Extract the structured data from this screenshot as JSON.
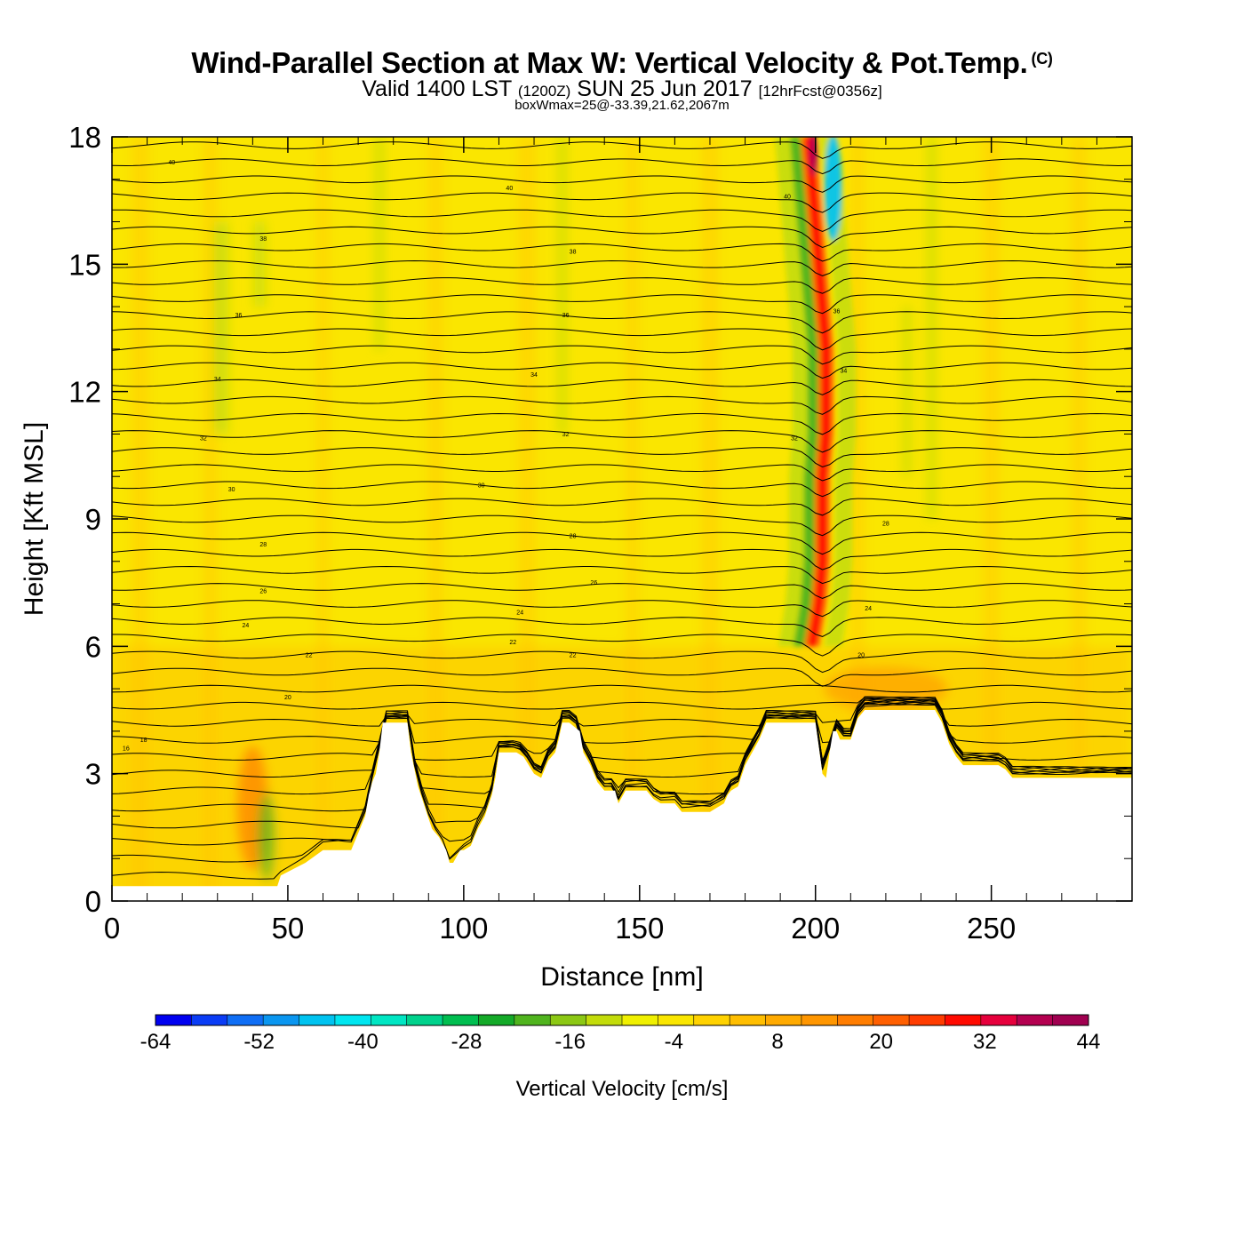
{
  "title": {
    "main": "Wind-Parallel Section at Max W: Vertical Velocity & Pot.Temp.",
    "copyright": "(C)",
    "valid_prefix": "Valid 1400 LST",
    "valid_utc": "(1200Z)",
    "valid_date": "SUN 25 Jun 2017",
    "forecast": "[12hrFcst@0356z]",
    "box_note": "boxWmax=25@-33.39,21.62,2067m"
  },
  "chart_data": {
    "type": "heatmap",
    "description": "Filled contours of vertical velocity with black potential temperature isolines over terrain",
    "xlabel": "Distance [nm]",
    "ylabel": "Height [Kft MSL]",
    "xlim": [
      0,
      290
    ],
    "ylim": [
      0,
      18
    ],
    "x_ticks": [
      0,
      50,
      100,
      150,
      200,
      250
    ],
    "y_ticks": [
      0,
      3,
      6,
      9,
      12,
      15,
      18
    ],
    "colorbar": {
      "label": "Vertical Velocity [cm/s]",
      "min": -64,
      "max": 44,
      "step": 4,
      "tick_labels": [
        "-64",
        "-52",
        "-40",
        "-28",
        "-16",
        "-4",
        "8",
        "20",
        "32",
        "44"
      ],
      "colors": [
        "#0000f0",
        "#0a3cf5",
        "#0f6ef5",
        "#0a96f0",
        "#00c3f0",
        "#00e6f0",
        "#00e6c3",
        "#00d28c",
        "#00be50",
        "#14aa28",
        "#50b41e",
        "#8cc814",
        "#c3dc0a",
        "#f0f000",
        "#fae600",
        "#ffd200",
        "#ffbe00",
        "#ffaa00",
        "#ff9600",
        "#ff7d00",
        "#ff5f00",
        "#ff3c00",
        "#ff0a00",
        "#e6003c",
        "#b40050",
        "#a00050"
      ]
    },
    "terrain_kft": [
      [
        0,
        0.35
      ],
      [
        10,
        0.35
      ],
      [
        20,
        0.35
      ],
      [
        30,
        0.35
      ],
      [
        40,
        0.35
      ],
      [
        47,
        0.35
      ],
      [
        48,
        0.6
      ],
      [
        55,
        0.9
      ],
      [
        60,
        1.2
      ],
      [
        68,
        1.2
      ],
      [
        70,
        1.6
      ],
      [
        72,
        2
      ],
      [
        73,
        2.5
      ],
      [
        74,
        2.8
      ],
      [
        75,
        3
      ],
      [
        76,
        3.5
      ],
      [
        77,
        4.2
      ],
      [
        80,
        4.2
      ],
      [
        84,
        4.2
      ],
      [
        85,
        3.5
      ],
      [
        87,
        2.7
      ],
      [
        89,
        2.2
      ],
      [
        91,
        1.7
      ],
      [
        93,
        1.5
      ],
      [
        95,
        1.2
      ],
      [
        96,
        0.9
      ],
      [
        97,
        0.9
      ],
      [
        99,
        1.2
      ],
      [
        100,
        1.2
      ],
      [
        102,
        1.3
      ],
      [
        104,
        1.7
      ],
      [
        106,
        2.0
      ],
      [
        108,
        2.5
      ],
      [
        109,
        2.9
      ],
      [
        110,
        3.5
      ],
      [
        112,
        3.5
      ],
      [
        115,
        3.5
      ],
      [
        117,
        3.4
      ],
      [
        120,
        3.0
      ],
      [
        122,
        2.9
      ],
      [
        124,
        3.3
      ],
      [
        126,
        3.5
      ],
      [
        127,
        3.8
      ],
      [
        128,
        4.2
      ],
      [
        130,
        4.2
      ],
      [
        133,
        4.0
      ],
      [
        134,
        3.5
      ],
      [
        136,
        3.2
      ],
      [
        138,
        2.8
      ],
      [
        140,
        2.6
      ],
      [
        143,
        2.6
      ],
      [
        144,
        2.3
      ],
      [
        146,
        2.6
      ],
      [
        152,
        2.6
      ],
      [
        154,
        2.4
      ],
      [
        156,
        2.3
      ],
      [
        160,
        2.3
      ],
      [
        162,
        2.1
      ],
      [
        165,
        2.1
      ],
      [
        170,
        2.1
      ],
      [
        172,
        2.2
      ],
      [
        174,
        2.3
      ],
      [
        175,
        2.5
      ],
      [
        176,
        2.6
      ],
      [
        178,
        2.7
      ],
      [
        180,
        3.2
      ],
      [
        182,
        3.5
      ],
      [
        184,
        3.8
      ],
      [
        186,
        4.2
      ],
      [
        192,
        4.2
      ],
      [
        196,
        4.2
      ],
      [
        198,
        4.2
      ],
      [
        200,
        4.2
      ],
      [
        201,
        3.6
      ],
      [
        202,
        3.0
      ],
      [
        203,
        2.9
      ],
      [
        204,
        3.5
      ],
      [
        205,
        4.0
      ],
      [
        206,
        4.0
      ],
      [
        207,
        3.8
      ],
      [
        210,
        3.8
      ],
      [
        212,
        4.3
      ],
      [
        214,
        4.5
      ],
      [
        220,
        4.5
      ],
      [
        234,
        4.5
      ],
      [
        236,
        4.2
      ],
      [
        238,
        3.7
      ],
      [
        240,
        3.4
      ],
      [
        242,
        3.2
      ],
      [
        247,
        3.2
      ],
      [
        252,
        3.2
      ],
      [
        254,
        3.1
      ],
      [
        256,
        2.9
      ],
      [
        260,
        2.9
      ],
      [
        270,
        2.9
      ],
      [
        280,
        2.9
      ],
      [
        290,
        2.9
      ]
    ],
    "isentrope_labels": [
      {
        "x": 17,
        "y": 17.4,
        "text": "40"
      },
      {
        "x": 113,
        "y": 16.8,
        "text": "40"
      },
      {
        "x": 192,
        "y": 16.6,
        "text": "40"
      },
      {
        "x": 43,
        "y": 15.6,
        "text": "38"
      },
      {
        "x": 131,
        "y": 15.3,
        "text": "38"
      },
      {
        "x": 36,
        "y": 13.8,
        "text": "36"
      },
      {
        "x": 129,
        "y": 13.8,
        "text": "36"
      },
      {
        "x": 206,
        "y": 13.9,
        "text": "36"
      },
      {
        "x": 30,
        "y": 12.3,
        "text": "34"
      },
      {
        "x": 120,
        "y": 12.4,
        "text": "34"
      },
      {
        "x": 208,
        "y": 12.5,
        "text": "34"
      },
      {
        "x": 26,
        "y": 10.9,
        "text": "32"
      },
      {
        "x": 129,
        "y": 11.0,
        "text": "32"
      },
      {
        "x": 194,
        "y": 10.9,
        "text": "32"
      },
      {
        "x": 34,
        "y": 9.7,
        "text": "30"
      },
      {
        "x": 105,
        "y": 9.8,
        "text": "30"
      },
      {
        "x": 43,
        "y": 8.4,
        "text": "28"
      },
      {
        "x": 131,
        "y": 8.6,
        "text": "28"
      },
      {
        "x": 220,
        "y": 8.9,
        "text": "28"
      },
      {
        "x": 43,
        "y": 7.3,
        "text": "26"
      },
      {
        "x": 137,
        "y": 7.5,
        "text": "26"
      },
      {
        "x": 116,
        "y": 6.8,
        "text": "24"
      },
      {
        "x": 38,
        "y": 6.5,
        "text": "24"
      },
      {
        "x": 215,
        "y": 6.9,
        "text": "24"
      },
      {
        "x": 114,
        "y": 6.1,
        "text": "22"
      },
      {
        "x": 56,
        "y": 5.8,
        "text": "22"
      },
      {
        "x": 131,
        "y": 5.8,
        "text": "22"
      },
      {
        "x": 50,
        "y": 4.8,
        "text": "20"
      },
      {
        "x": 213,
        "y": 5.8,
        "text": "20"
      },
      {
        "x": 9,
        "y": 3.8,
        "text": "18"
      },
      {
        "x": 4,
        "y": 3.6,
        "text": "16"
      }
    ],
    "updraft_core": [
      [
        198,
        18
      ],
      [
        199,
        17
      ],
      [
        200,
        16
      ],
      [
        201,
        15
      ],
      [
        202,
        14
      ],
      [
        203,
        13
      ],
      [
        203,
        12
      ],
      [
        203,
        11
      ],
      [
        202,
        10
      ],
      [
        202,
        9
      ],
      [
        202,
        8
      ],
      [
        201,
        7
      ],
      [
        199,
        6
      ]
    ]
  }
}
